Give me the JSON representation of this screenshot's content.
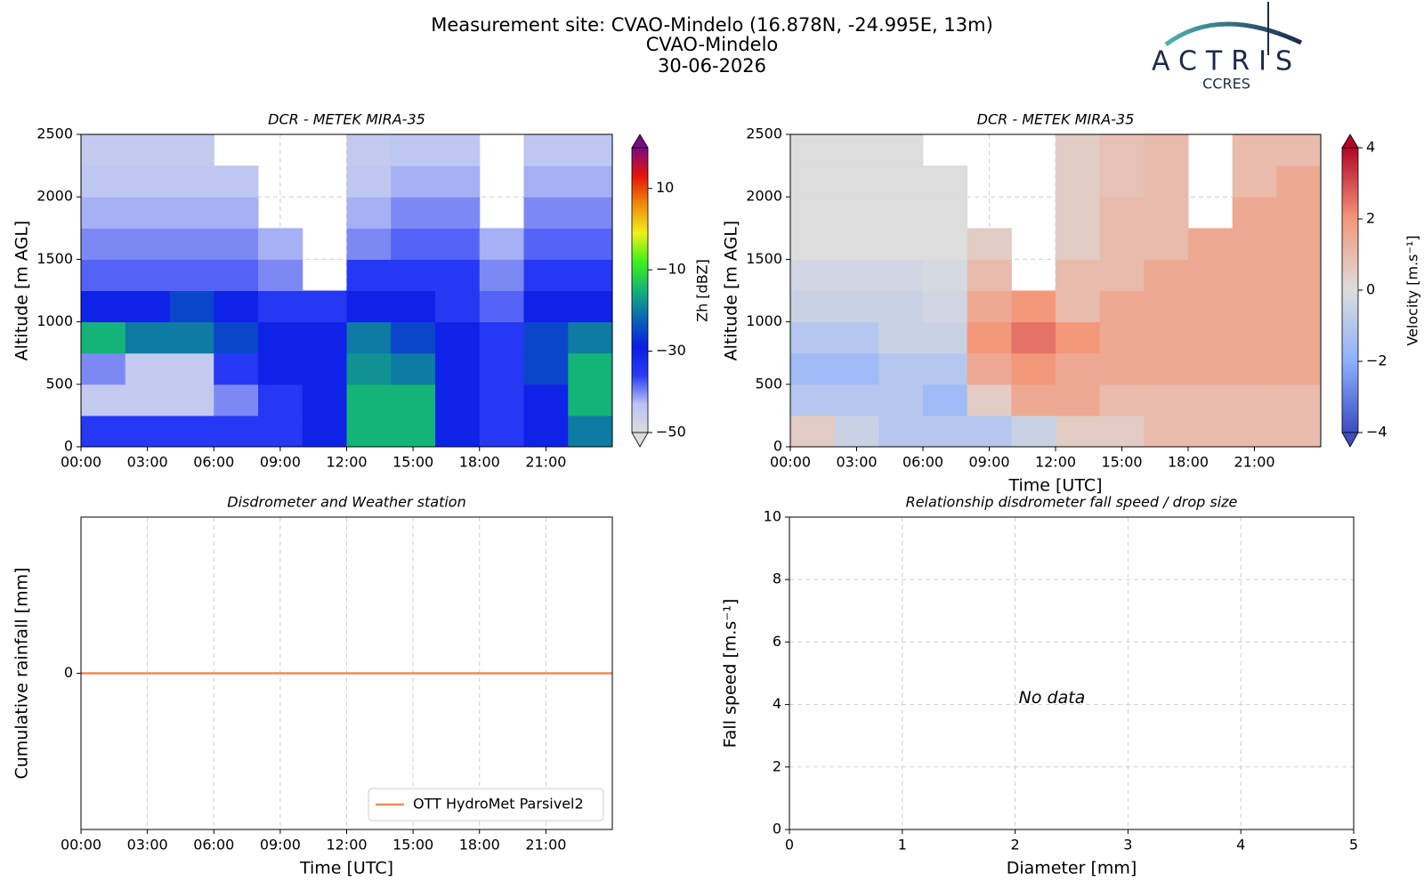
{
  "header": {
    "title": "Measurement site: CVAO-Mindelo (16.878N, -24.995E, 13m)",
    "site": "CVAO-Mindelo",
    "date": "30-06-2026"
  },
  "logo": {
    "name": "ACTRIS",
    "sub": "CCRES"
  },
  "chart_data": [
    {
      "type": "heatmap",
      "title": "DCR - METEK MIRA-35",
      "ylabel": "Altitude [m AGL]",
      "zlabel": "Zh [dBZ]",
      "x_edges": [
        0,
        2,
        4,
        6,
        8,
        10,
        12,
        14,
        16,
        18,
        20,
        22,
        24
      ],
      "y_edges": [
        0,
        250,
        500,
        750,
        1000,
        1250,
        1500,
        1750,
        2000,
        2250,
        2500
      ],
      "z": [
        [
          -35,
          -35,
          -35,
          -35,
          -35,
          -30,
          -15,
          -15,
          -30,
          -35,
          -30,
          -20
        ],
        [
          -45,
          -45,
          -45,
          -40,
          -35,
          -30,
          -15,
          -15,
          -30,
          -35,
          -30,
          -15
        ],
        [
          -40,
          -45,
          -45,
          -35,
          -30,
          -30,
          -18,
          -20,
          -30,
          -35,
          -25,
          -15
        ],
        [
          -15,
          -20,
          -20,
          -25,
          -30,
          -30,
          -20,
          -25,
          -30,
          -35,
          -25,
          -20
        ],
        [
          -30,
          -30,
          -25,
          -30,
          -35,
          -35,
          -30,
          -30,
          -35,
          -38,
          -30,
          -30
        ],
        [
          -38,
          -38,
          -38,
          -38,
          -40,
          null,
          -35,
          -35,
          -35,
          -40,
          -35,
          -35
        ],
        [
          -40,
          -40,
          -40,
          -40,
          -42,
          null,
          -40,
          -38,
          -38,
          -42,
          -38,
          -38
        ],
        [
          -42,
          -42,
          -42,
          -42,
          null,
          null,
          -42,
          -40,
          -40,
          null,
          -40,
          -40
        ],
        [
          -44,
          -44,
          -44,
          -44,
          null,
          null,
          -44,
          -42,
          -42,
          null,
          -42,
          -42
        ],
        [
          -45,
          -45,
          -45,
          null,
          null,
          null,
          -45,
          -44,
          -44,
          null,
          -44,
          -44
        ]
      ],
      "xlim": [
        0,
        24
      ],
      "ylim": [
        0,
        2500
      ],
      "xticks": [
        {
          "value": 0,
          "label": "00:00"
        },
        {
          "value": 3,
          "label": "03:00"
        },
        {
          "value": 6,
          "label": "06:00"
        },
        {
          "value": 9,
          "label": "09:00"
        },
        {
          "value": 12,
          "label": "12:00"
        },
        {
          "value": 15,
          "label": "15:00"
        },
        {
          "value": 18,
          "label": "18:00"
        },
        {
          "value": 21,
          "label": "21:00"
        }
      ],
      "yticks": [
        0,
        500,
        1000,
        1500,
        2000,
        2500
      ],
      "zlim": [
        -50,
        20
      ],
      "zticks": [
        {
          "value": -50,
          "label": "−50"
        },
        {
          "value": -30,
          "label": "−30"
        },
        {
          "value": -10,
          "label": "−10"
        },
        10
      ],
      "colormap": [
        "#dcdcdc",
        "#b9c3f5",
        "#2a3cf5",
        "#0a1ee6",
        "#0a64b4",
        "#14b478",
        "#3ef01a",
        "#f0f01a",
        "#f08c0a",
        "#e6140a",
        "#780a82"
      ],
      "grid": true
    },
    {
      "type": "heatmap",
      "title": "DCR - METEK MIRA-35",
      "xlabel": "Time [UTC]",
      "ylabel": "Altitude [m AGL]",
      "zlabel": "Velocity [m.s⁻¹]",
      "x_edges": [
        0,
        2,
        4,
        6,
        8,
        10,
        12,
        14,
        16,
        18,
        20,
        22,
        24
      ],
      "y_edges": [
        0,
        250,
        500,
        750,
        1000,
        1250,
        1500,
        1750,
        2000,
        2250,
        2500
      ],
      "z": [
        [
          0.5,
          -0.5,
          -1,
          -1,
          -1,
          -0.5,
          0.5,
          0.5,
          1,
          1,
          1,
          1
        ],
        [
          -1,
          -1,
          -1,
          -1.5,
          0.5,
          1.5,
          1.5,
          1,
          1,
          1,
          1,
          1
        ],
        [
          -1.5,
          -1.5,
          -1,
          -1,
          1.5,
          2,
          1.5,
          1.5,
          1.5,
          1.5,
          1.5,
          1.5
        ],
        [
          -1,
          -1,
          -0.5,
          -0.5,
          2,
          2.5,
          2,
          1.5,
          1.5,
          1.5,
          1.5,
          1.5
        ],
        [
          -0.5,
          -0.5,
          -0.5,
          -0.3,
          1.5,
          2,
          1,
          1.5,
          1.5,
          1.5,
          1.5,
          1.5
        ],
        [
          -0.3,
          -0.3,
          -0.3,
          -0.2,
          1,
          null,
          1,
          1,
          1.5,
          1.5,
          1.5,
          1.5
        ],
        [
          0,
          0,
          0,
          0,
          0.5,
          null,
          0.5,
          1,
          1,
          1.5,
          1.5,
          1.5
        ],
        [
          0,
          0,
          0,
          0,
          null,
          null,
          0.5,
          1,
          1,
          null,
          1.5,
          1.5
        ],
        [
          0,
          0,
          0,
          0,
          null,
          null,
          0.5,
          0.8,
          1,
          null,
          1,
          1.5
        ],
        [
          0,
          0,
          0,
          null,
          null,
          null,
          0.5,
          0.8,
          1,
          null,
          1,
          1
        ]
      ],
      "xlim": [
        0,
        24
      ],
      "ylim": [
        0,
        2500
      ],
      "xticks": [
        {
          "value": 0,
          "label": "00:00"
        },
        {
          "value": 3,
          "label": "03:00"
        },
        {
          "value": 6,
          "label": "06:00"
        },
        {
          "value": 9,
          "label": "09:00"
        },
        {
          "value": 12,
          "label": "12:00"
        },
        {
          "value": 15,
          "label": "15:00"
        },
        {
          "value": 18,
          "label": "18:00"
        },
        {
          "value": 21,
          "label": "21:00"
        }
      ],
      "yticks": [
        0,
        500,
        1000,
        1500,
        2000,
        2500
      ],
      "zlim": [
        -4,
        4
      ],
      "zticks": [
        {
          "value": -4,
          "label": "−4"
        },
        {
          "value": -2,
          "label": "−2"
        },
        0,
        2,
        4
      ],
      "colormap": [
        "#3b4cc0",
        "#8db0fe",
        "#dddddd",
        "#f4987a",
        "#b40426"
      ],
      "grid": true
    },
    {
      "type": "line",
      "title": "Disdrometer and Weather station",
      "xlabel": "Time [UTC]",
      "ylabel": "Cumulative rainfall [mm]",
      "x": [
        0,
        24
      ],
      "series": [
        {
          "name": "OTT HydroMet Parsivel2",
          "color": "#ef8a5c",
          "values": [
            0,
            0
          ]
        }
      ],
      "xlim": [
        0,
        24
      ],
      "ylim": [
        -1,
        1
      ],
      "xticks": [
        {
          "value": 0,
          "label": "00:00"
        },
        {
          "value": 3,
          "label": "03:00"
        },
        {
          "value": 6,
          "label": "06:00"
        },
        {
          "value": 9,
          "label": "09:00"
        },
        {
          "value": 12,
          "label": "12:00"
        },
        {
          "value": 15,
          "label": "15:00"
        },
        {
          "value": 18,
          "label": "18:00"
        },
        {
          "value": 21,
          "label": "21:00"
        }
      ],
      "yticks": [
        0
      ],
      "grid": true,
      "legend": "lower right"
    },
    {
      "type": "scatter",
      "title": "Relationship disdrometer fall speed / drop size",
      "xlabel": "Diameter [mm]",
      "ylabel": "Fall speed [m.s⁻¹]",
      "annotation": "No data",
      "xlim": [
        0,
        5
      ],
      "ylim": [
        0,
        10
      ],
      "xticks": [
        0,
        1,
        2,
        3,
        4,
        5
      ],
      "yticks": [
        0,
        2,
        4,
        6,
        8,
        10
      ],
      "grid": true
    }
  ]
}
